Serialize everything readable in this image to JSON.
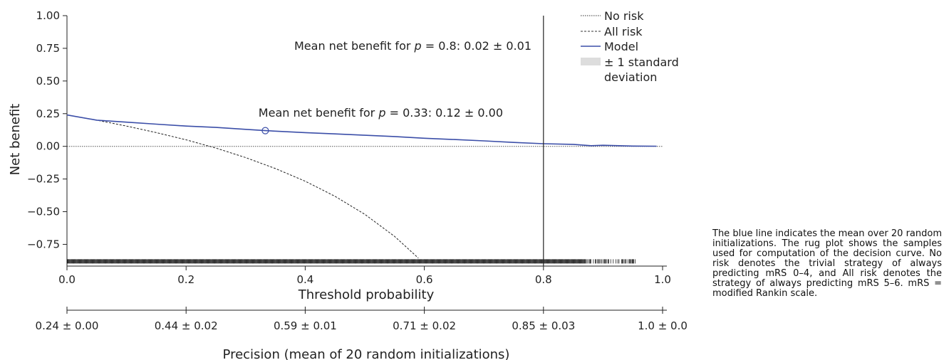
{
  "chart_data": {
    "type": "line",
    "ylabel": "Net benefit",
    "xlabel": "Threshold probability",
    "xlim": [
      0.0,
      1.0
    ],
    "ylim": [
      -0.9,
      1.0
    ],
    "x_ticks": [
      0.0,
      0.2,
      0.4,
      0.6,
      0.8,
      1.0
    ],
    "x_tick_labels": [
      "0.0",
      "0.2",
      "0.4",
      "0.6",
      "0.8",
      "1.0"
    ],
    "y_ticks": [
      1.0,
      0.75,
      0.5,
      0.25,
      0.0,
      -0.25,
      -0.5,
      -0.75
    ],
    "y_tick_labels": [
      "1.00",
      "0.75",
      "0.50",
      "0.25",
      "0.00",
      "−0.25",
      "−0.50",
      "−0.75"
    ],
    "series": [
      {
        "name": "No risk",
        "style": "dotted",
        "color": "#555555",
        "x": [
          0.0,
          1.0
        ],
        "y": [
          0.0,
          0.0
        ]
      },
      {
        "name": "All risk",
        "style": "dashed",
        "color": "#222222",
        "x": [
          0.0,
          0.05,
          0.1,
          0.15,
          0.2,
          0.25,
          0.3,
          0.35,
          0.4,
          0.45,
          0.5,
          0.55,
          0.59
        ],
        "y": [
          0.24,
          0.2,
          0.155,
          0.105,
          0.05,
          -0.013,
          -0.086,
          -0.17,
          -0.267,
          -0.382,
          -0.52,
          -0.689,
          -0.855
        ]
      },
      {
        "name": "Model",
        "style": "solid",
        "color": "#3b4ea8",
        "x": [
          0.0,
          0.05,
          0.1,
          0.15,
          0.2,
          0.25,
          0.3,
          0.333,
          0.4,
          0.45,
          0.5,
          0.55,
          0.6,
          0.65,
          0.7,
          0.75,
          0.8,
          0.85,
          0.88,
          0.9,
          0.95,
          0.99
        ],
        "y": [
          0.24,
          0.2,
          0.185,
          0.17,
          0.155,
          0.145,
          0.13,
          0.12,
          0.105,
          0.095,
          0.085,
          0.075,
          0.062,
          0.052,
          0.042,
          0.03,
          0.02,
          0.015,
          0.005,
          0.008,
          0.002,
          0.001
        ]
      }
    ],
    "legend_position": "top-right",
    "legend": [
      {
        "label": "No risk",
        "style": "dotted"
      },
      {
        "label": "All risk",
        "style": "dashed"
      },
      {
        "label": "Model",
        "style": "solid",
        "color": "#3b4ea8"
      },
      {
        "label": "± 1 standard",
        "label2": "deviation",
        "style": "band",
        "color": "#dddddd"
      }
    ],
    "vertical_line_x": 0.8,
    "marker": {
      "x": 0.333,
      "y": 0.12
    },
    "annotations": [
      {
        "prefix": "Mean net benefit for ",
        "italic": "p",
        "suffix": " = 0.8: 0.02 ± 0.01"
      },
      {
        "prefix": "Mean net benefit for ",
        "italic": "p",
        "suffix": " = 0.33: 0.12 ± 0.00"
      }
    ],
    "rug_range": [
      0.0,
      0.955
    ],
    "rug_y": -0.88,
    "secondary_axis": {
      "label": "Precision (mean of 20 random initializations)",
      "ticks": [
        0.0,
        0.2,
        0.4,
        0.6,
        0.8,
        1.0
      ],
      "tick_labels": [
        "0.24 ± 0.00",
        "0.44 ± 0.02",
        "0.59 ± 0.01",
        "0.71 ± 0.02",
        "0.85 ± 0.03",
        "1.0 ± 0.0"
      ]
    }
  },
  "caption": "The blue line indicates the mean over 20 random initializations. The rug plot shows the samples used for computation of the decision curve. No risk denotes the trivial strategy of always predicting mRS 0–4, and All risk denotes the strategy of always predicting mRS 5–6. mRS = modified Rankin scale."
}
